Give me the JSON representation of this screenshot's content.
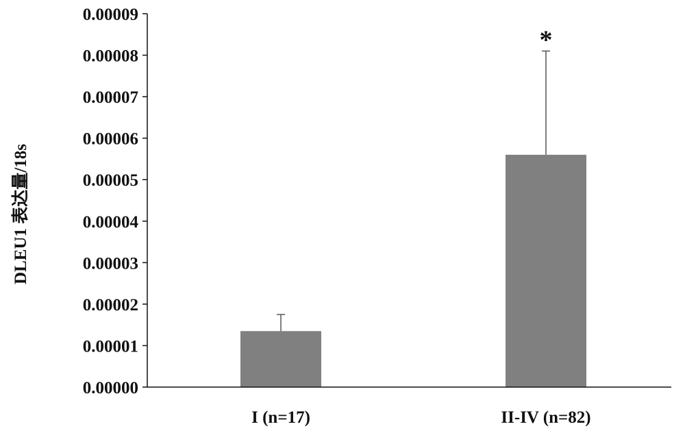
{
  "chart_data": {
    "type": "bar",
    "title": "",
    "xlabel": "",
    "ylabel": "DLEU1 表达量/18s",
    "categories": [
      "I (n=17)",
      "II-IV (n=82)"
    ],
    "values": [
      1.35e-05,
      5.6e-05
    ],
    "error_upper": [
      1.75e-05,
      8.1e-05
    ],
    "annotations": [
      "",
      "*"
    ],
    "ylim": [
      0,
      9e-05
    ],
    "yticks": [
      0,
      1e-05,
      2e-05,
      3e-05,
      4e-05,
      5e-05,
      6e-05,
      7e-05,
      8e-05,
      9e-05
    ],
    "ytick_labels": [
      "0.00000",
      "0.00001",
      "0.00002",
      "0.00003",
      "0.00004",
      "0.00005",
      "0.00006",
      "0.00007",
      "0.00008",
      "0.00009"
    ],
    "bar_color": "#808080",
    "grid": false,
    "legend": "none"
  }
}
